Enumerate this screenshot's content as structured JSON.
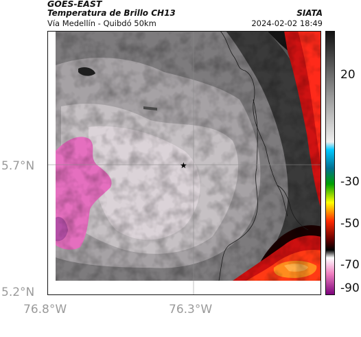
{
  "header": {
    "product": "GOES-EAST",
    "title": "Temperatura de Brillo CH13",
    "region": "Vía Medellín - Quibdó 50km",
    "agency": "SIATA",
    "timestamp": "2024-02-02 18:49"
  },
  "axes": {
    "lat_labels": [
      "5.7°N",
      "5.2°N"
    ],
    "lon_labels": [
      "76.8°W",
      "76.3°W"
    ]
  },
  "colorbar": {
    "tick_labels": [
      "20",
      "-30",
      "-50",
      "-70",
      "-90"
    ],
    "colors": [
      "#1a1a1a",
      "#bdbdbd",
      "#e6dde3",
      "#00c0e0",
      "#00a000",
      "#ffff00",
      "#ff0000",
      "#000000",
      "#f080c0",
      "#800080"
    ]
  },
  "marker": {
    "symbol": "★"
  }
}
